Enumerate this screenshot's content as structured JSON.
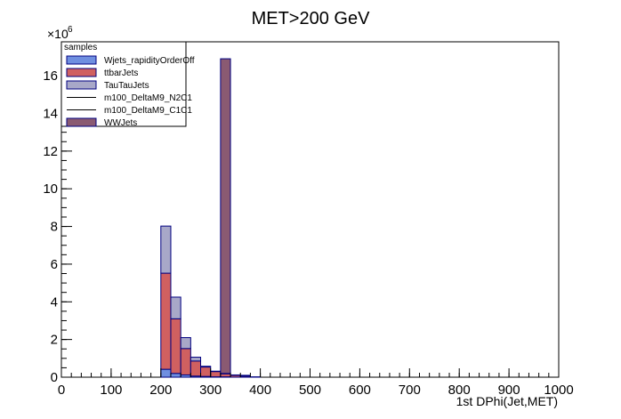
{
  "chart_data": {
    "type": "bar",
    "subtype": "stacked-histogram",
    "title": "MET>200 GeV",
    "xlabel": "1st DPhi(Jet,MET)",
    "ylabel": "",
    "y_multiplier": "×10",
    "y_multiplier_exp": "6",
    "xlim": [
      0,
      1000
    ],
    "ylim": [
      0,
      17.8
    ],
    "bin_width": 20,
    "x_ticks": [
      0,
      100,
      200,
      300,
      400,
      500,
      600,
      700,
      800,
      900,
      1000
    ],
    "x_tick_labels": [
      "0",
      "100",
      "200",
      "300",
      "400",
      "500",
      "600",
      "700",
      "800",
      "900",
      "1000"
    ],
    "y_ticks": [
      0,
      2,
      4,
      6,
      8,
      10,
      12,
      14,
      16
    ],
    "y_tick_labels": [
      "0",
      "2",
      "4",
      "6",
      "8",
      "10",
      "12",
      "14",
      "16"
    ],
    "legend": {
      "header": "samples",
      "placement": "top-left"
    },
    "colors": {
      "wjets": "#6f8fe0",
      "ttbar": "#d06060",
      "tautau": "#a8a8c8",
      "ww": "#8a5a72",
      "outline": "#000080"
    },
    "series": [
      {
        "name": "Wjets_rapidityOrderOff",
        "style": "filled",
        "color_key": "wjets",
        "bins": [
          {
            "x": 200,
            "y": 0.42
          },
          {
            "x": 220,
            "y": 0.2
          },
          {
            "x": 240,
            "y": 0.12
          },
          {
            "x": 260,
            "y": 0.06
          },
          {
            "x": 280,
            "y": 0.04
          },
          {
            "x": 300,
            "y": 0.02
          },
          {
            "x": 320,
            "y": 0.02
          }
        ]
      },
      {
        "name": "ttbarJets",
        "style": "filled",
        "color_key": "ttbar",
        "bins": [
          {
            "x": 200,
            "y": 5.1
          },
          {
            "x": 220,
            "y": 2.9
          },
          {
            "x": 240,
            "y": 1.4
          },
          {
            "x": 260,
            "y": 0.8
          },
          {
            "x": 280,
            "y": 0.5
          },
          {
            "x": 300,
            "y": 0.28
          },
          {
            "x": 320,
            "y": 0.16
          },
          {
            "x": 340,
            "y": 0.1
          },
          {
            "x": 360,
            "y": 0.06
          }
        ]
      },
      {
        "name": "TauTauJets",
        "style": "filled",
        "color_key": "tautau",
        "bins": [
          {
            "x": 200,
            "y": 2.5
          },
          {
            "x": 220,
            "y": 1.15
          },
          {
            "x": 240,
            "y": 0.58
          },
          {
            "x": 260,
            "y": 0.2
          },
          {
            "x": 280,
            "y": 0.04
          },
          {
            "x": 300,
            "y": 0.02
          },
          {
            "x": 320,
            "y": 0.02
          },
          {
            "x": 340,
            "y": 0.02
          },
          {
            "x": 360,
            "y": 0.04
          },
          {
            "x": 380,
            "y": 0.02
          }
        ]
      },
      {
        "name": "m100_DeltaM9_N2C1",
        "style": "line",
        "color_key": "outline",
        "bins": []
      },
      {
        "name": "m100_DeltaM9_C1C1",
        "style": "line",
        "color_key": "outline",
        "bins": []
      },
      {
        "name": "WWJets",
        "style": "filled",
        "color_key": "ww",
        "bins": [
          {
            "x": 320,
            "y": 16.7
          }
        ]
      }
    ]
  }
}
